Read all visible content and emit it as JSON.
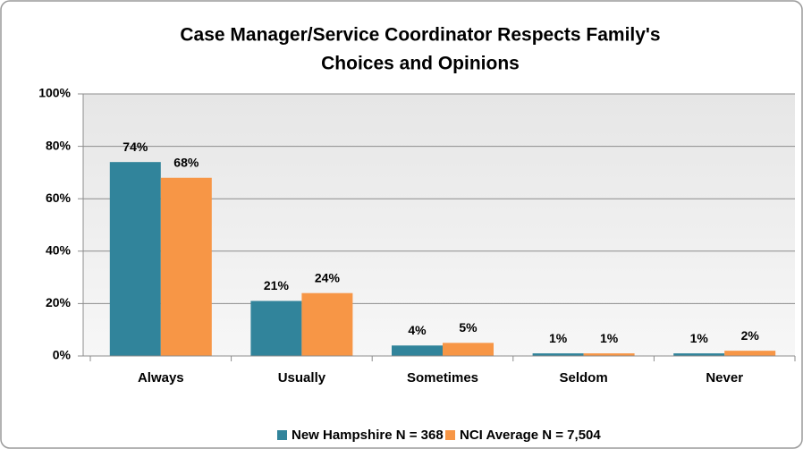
{
  "chart_data": {
    "type": "bar",
    "title": [
      "Case Manager/Service Coordinator Respects Family's",
      "Choices and Opinions"
    ],
    "categories": [
      "Always",
      "Usually",
      "Sometimes",
      "Seldom",
      "Never"
    ],
    "series": [
      {
        "name": "New Hampshire N = 368",
        "color": "#31849b",
        "values": [
          74,
          21,
          4,
          1,
          1
        ],
        "value_labels": [
          "74%",
          "21%",
          "4%",
          "1%",
          "1%"
        ]
      },
      {
        "name": "NCI Average N = 7,504",
        "color": "#f79646",
        "values": [
          68,
          24,
          5,
          1,
          2
        ],
        "value_labels": [
          "68%",
          "24%",
          "5%",
          "1%",
          "2%"
        ]
      }
    ],
    "ylim": [
      0,
      100
    ],
    "yticks": [
      {
        "value": 0,
        "label": "0%"
      },
      {
        "value": 20,
        "label": "20%"
      },
      {
        "value": 40,
        "label": "40%"
      },
      {
        "value": 60,
        "label": "60%"
      },
      {
        "value": 80,
        "label": "80%"
      },
      {
        "value": 100,
        "label": "100%"
      }
    ],
    "grid": true,
    "legend": "bottom"
  }
}
